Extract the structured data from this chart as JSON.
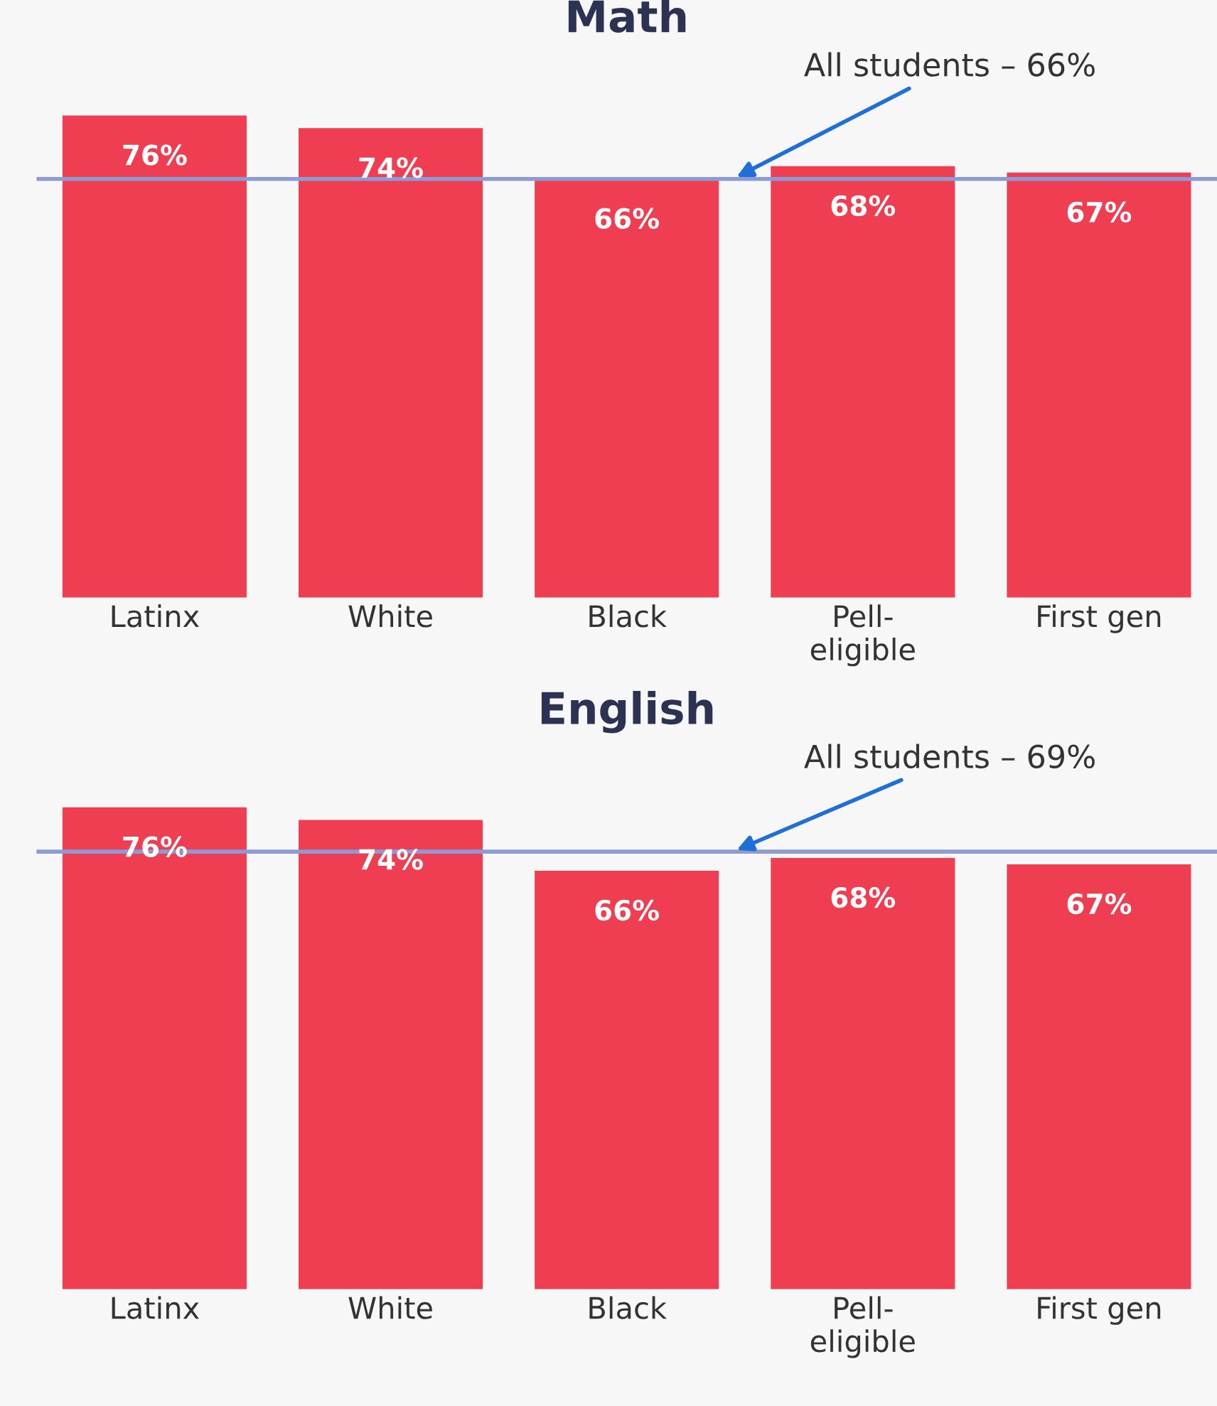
{
  "chart_data": [
    {
      "type": "bar",
      "title": "Math",
      "categories": [
        "Latinx",
        "White",
        "Black",
        "Pell-\neligible",
        "First gen"
      ],
      "values": [
        76,
        74,
        66,
        68,
        67
      ],
      "color": "#ef3e52",
      "value_labels": [
        "76%",
        "74%",
        "66%",
        "68%",
        "67%"
      ],
      "ref_lines": [
        {
          "axis": "y",
          "value": 66,
          "label": "All students – 66%",
          "color": "#8c9bd6"
        }
      ],
      "tick_labels": "x",
      "grid": false,
      "legend": false
    },
    {
      "type": "bar",
      "title": "English",
      "categories": [
        "Latinx",
        "White",
        "Black",
        "Pell-\neligible",
        "First gen"
      ],
      "values": [
        76,
        74,
        66,
        68,
        67
      ],
      "color": "#ef3e52",
      "value_labels": [
        "76%",
        "74%",
        "66%",
        "68%",
        "67%"
      ],
      "ref_lines": [
        {
          "axis": "y",
          "value": 69,
          "label": "All students – 69%",
          "color": "#8c9bd6"
        }
      ],
      "tick_labels": "x",
      "grid": false,
      "legend": false
    }
  ]
}
